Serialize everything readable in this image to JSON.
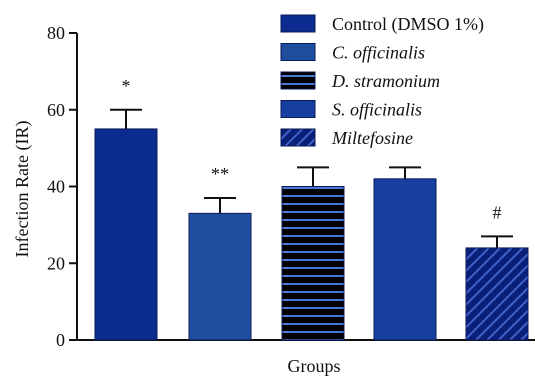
{
  "chart_data": {
    "type": "bar",
    "title": "",
    "xlabel": "Groups",
    "ylabel": "Infection Rate (IR)",
    "ylim": [
      0,
      80
    ],
    "yticks": [
      0,
      20,
      40,
      60,
      80
    ],
    "legend_position": "top-right",
    "grid": false,
    "series": [
      {
        "name": "Control (DMSO 1%)",
        "value": 55,
        "error": 5,
        "annotation": "*",
        "color": "#0B2B8F",
        "pattern": "solid",
        "italic": false
      },
      {
        "name": "C. officinalis",
        "value": 33,
        "error": 4,
        "annotation": "**",
        "color": "#1F4E9E",
        "pattern": "solid",
        "italic": true
      },
      {
        "name": "D. stramonium",
        "value": 40,
        "error": 5,
        "annotation": "",
        "color": "#000000",
        "pattern": "horizontal-lines",
        "stripe_color": "#4A78D6",
        "italic": true
      },
      {
        "name": "S. officinalis",
        "value": 42,
        "error": 3,
        "annotation": "",
        "color": "#163FA0",
        "pattern": "solid",
        "italic": true
      },
      {
        "name": "Miltefosine",
        "value": 24,
        "error": 3,
        "annotation": "#",
        "color": "#0A1F78",
        "pattern": "diagonal-lines",
        "stripe_color": "#3F61C9",
        "italic": true
      }
    ]
  }
}
